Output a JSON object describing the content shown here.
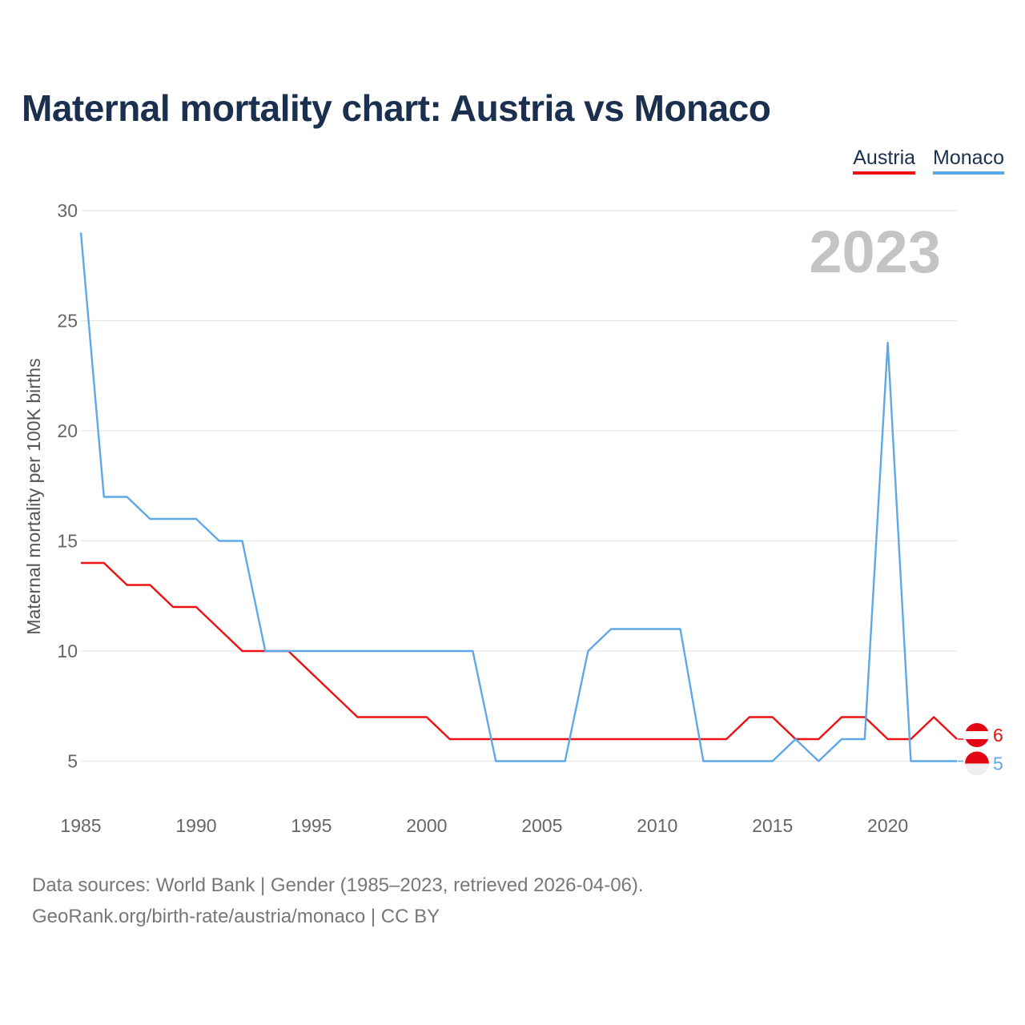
{
  "title": "Maternal mortality chart: Austria vs Monaco",
  "legend": {
    "austria": "Austria",
    "monaco": "Monaco"
  },
  "colors": {
    "austria": "#ee1111",
    "monaco": "#5fa8e8",
    "grid": "#e6e6e6",
    "title": "#1b2f4e"
  },
  "year_label": "2023",
  "sources": {
    "line1": "Data sources: World Bank | Gender (1985–2023, retrieved 2026-04-06).",
    "line2": "GeoRank.org/birth-rate/austria/monaco | CC BY"
  },
  "chart_data": {
    "type": "line",
    "title": "Maternal mortality chart: Austria vs Monaco",
    "xlabel": "",
    "ylabel": "Maternal mortality per 100K births",
    "xlim": [
      1985,
      2023
    ],
    "ylim": [
      3,
      30
    ],
    "x_ticks": [
      1985,
      1990,
      1995,
      2000,
      2005,
      2010,
      2015,
      2020
    ],
    "y_ticks": [
      5,
      10,
      15,
      20,
      25,
      30
    ],
    "grid": true,
    "legend_position": "top-right",
    "x": [
      1985,
      1986,
      1987,
      1988,
      1989,
      1990,
      1991,
      1992,
      1993,
      1994,
      1995,
      1996,
      1997,
      1998,
      1999,
      2000,
      2001,
      2002,
      2003,
      2004,
      2005,
      2006,
      2007,
      2008,
      2009,
      2010,
      2011,
      2012,
      2013,
      2014,
      2015,
      2016,
      2017,
      2018,
      2019,
      2020,
      2021,
      2022,
      2023
    ],
    "series": [
      {
        "name": "Austria",
        "color": "#ee1111",
        "end_label": "6",
        "values": [
          14,
          14,
          13,
          13,
          12,
          12,
          11,
          10,
          10,
          10,
          9,
          8,
          7,
          7,
          7,
          7,
          6,
          6,
          6,
          6,
          6,
          6,
          6,
          6,
          6,
          6,
          6,
          6,
          6,
          7,
          7,
          6,
          6,
          7,
          7,
          6,
          6,
          7,
          6
        ]
      },
      {
        "name": "Monaco",
        "color": "#5fa8e8",
        "end_label": "5",
        "values": [
          29,
          17,
          17,
          16,
          16,
          16,
          15,
          15,
          10,
          10,
          10,
          10,
          10,
          10,
          10,
          10,
          10,
          10,
          5,
          5,
          5,
          5,
          10,
          11,
          11,
          11,
          11,
          5,
          5,
          5,
          5,
          6,
          5,
          6,
          6,
          24,
          5,
          5,
          5
        ]
      }
    ]
  }
}
